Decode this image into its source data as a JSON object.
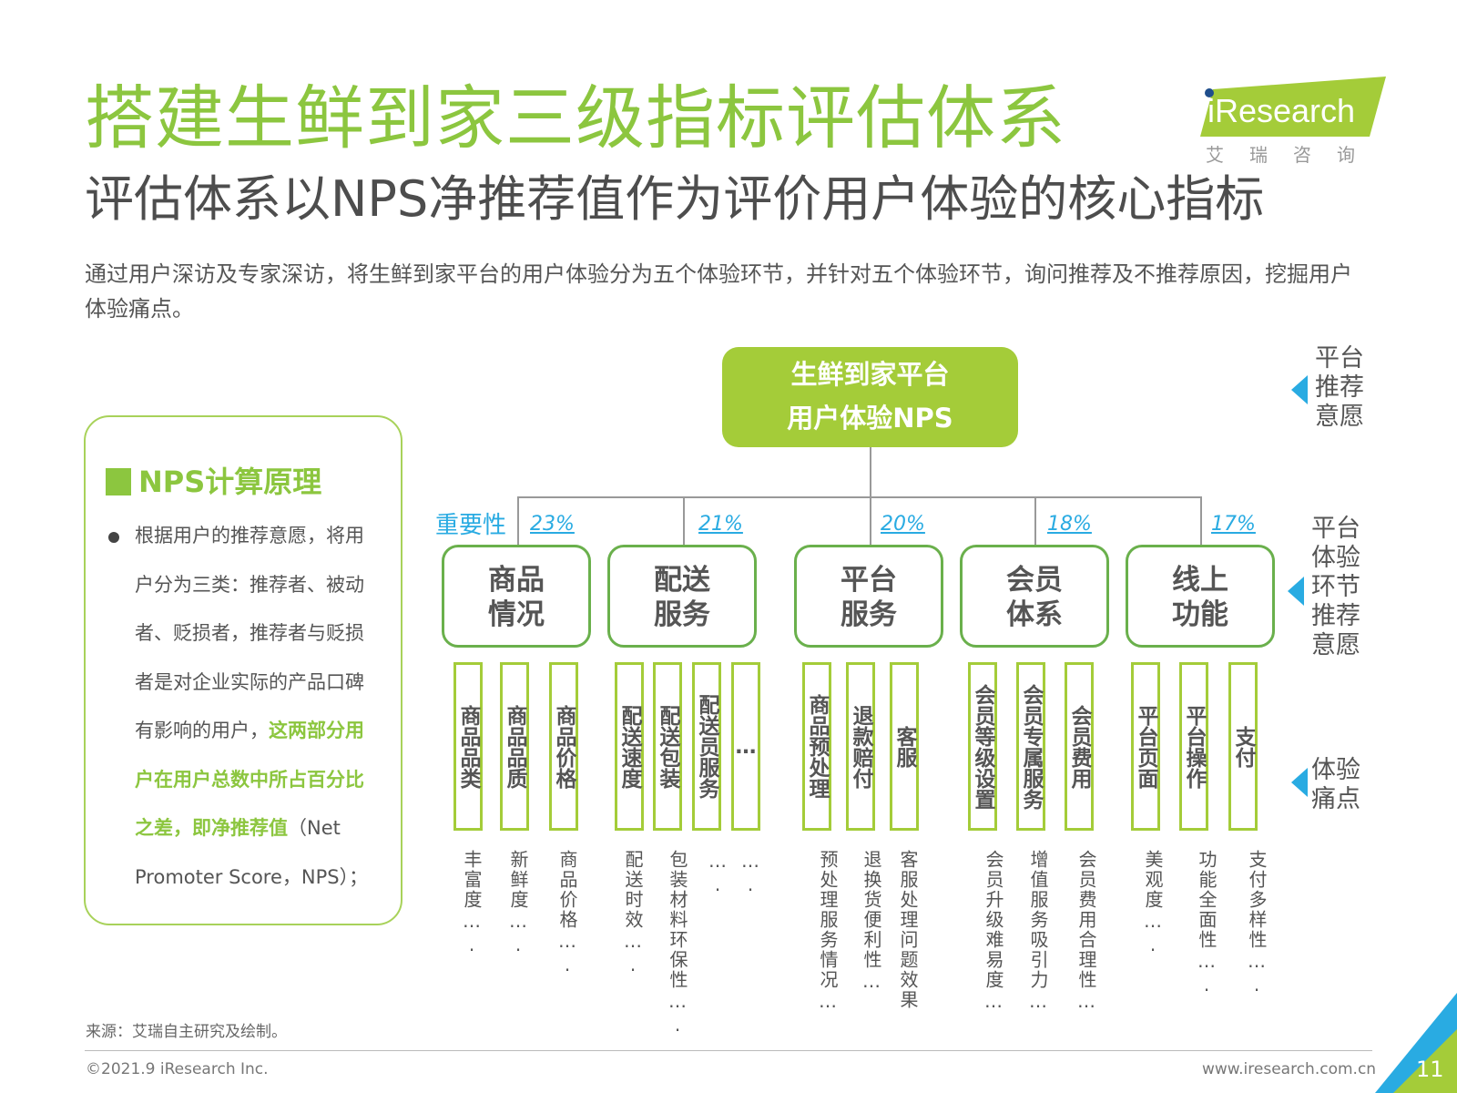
{
  "header": {
    "title": "搭建生鲜到家三级指标评估体系",
    "subtitle": "评估体系以NPS净推荐值作为评价用户体验的核心指标",
    "intro": "通过用户深访及专家深访，将生鲜到家平台的用户体验分为五个体验环节，并针对五个体验环节，询问推荐及不推荐原因，挖掘用户体验痛点。"
  },
  "logo": {
    "brand": "iResearch",
    "cn": "艾瑞咨询",
    "colors": {
      "green": "#a4cc39",
      "blue": "#29abe2"
    }
  },
  "nps_box": {
    "heading": "NPS计算原理",
    "text_plain": "根据用户的推荐意愿，将用户分为三类：推荐者、被动者、贬损者，推荐者与贬损者是对企业实际的产品口碑有影响的用户，",
    "text_highlight": "这两部分用户在用户总数中所占百分比之差，即净推荐值",
    "text_tail": "（Net Promoter Score，NPS）；"
  },
  "diagram": {
    "root_line1": "生鲜到家平台",
    "root_line2": "用户体验NPS",
    "importance_label": "重要性",
    "categories": [
      {
        "line1": "商品",
        "line2": "情况",
        "pct": "23%",
        "items": [
          "商品品类",
          "商品品质",
          "商品价格"
        ],
        "pains": [
          "丰富度….",
          "新鲜度….",
          "商品价格…."
        ]
      },
      {
        "line1": "配送",
        "line2": "服务",
        "pct": "21%",
        "items": [
          "配送速度",
          "配送包装",
          "配送员服务",
          "…"
        ],
        "pains": [
          "配送时效….",
          "包装材料环保性….",
          "….",
          "…."
        ]
      },
      {
        "line1": "平台",
        "line2": "服务",
        "pct": "20%",
        "items": [
          "商品预处理",
          "退款赔付",
          "客服"
        ],
        "pains": [
          "预处理服务情况…",
          "退换货便利性…",
          "客服处理问题效果"
        ]
      },
      {
        "line1": "会员",
        "line2": "体系",
        "pct": "18%",
        "items": [
          "会员等级设置",
          "会员专属服务",
          "会员费用"
        ],
        "pains": [
          "会员升级难易度…",
          "增值服务吸引力…",
          "会员费用合理性…"
        ]
      },
      {
        "line1": "线上",
        "line2": "功能",
        "pct": "17%",
        "items": [
          "平台页面",
          "平台操作",
          "支付"
        ],
        "pains": [
          "美观度….",
          "功能全面性….",
          "支付多样性…."
        ]
      }
    ],
    "right_labels": {
      "level1": "平台推荐意愿",
      "level2": "平台体验环节推荐意愿",
      "level3": "体验痛点"
    }
  },
  "footer": {
    "source": "来源：艾瑞自主研究及绘制。",
    "copyright": "©2021.9 iResearch Inc.",
    "website": "www.iresearch.com.cn",
    "page_number": "11"
  }
}
